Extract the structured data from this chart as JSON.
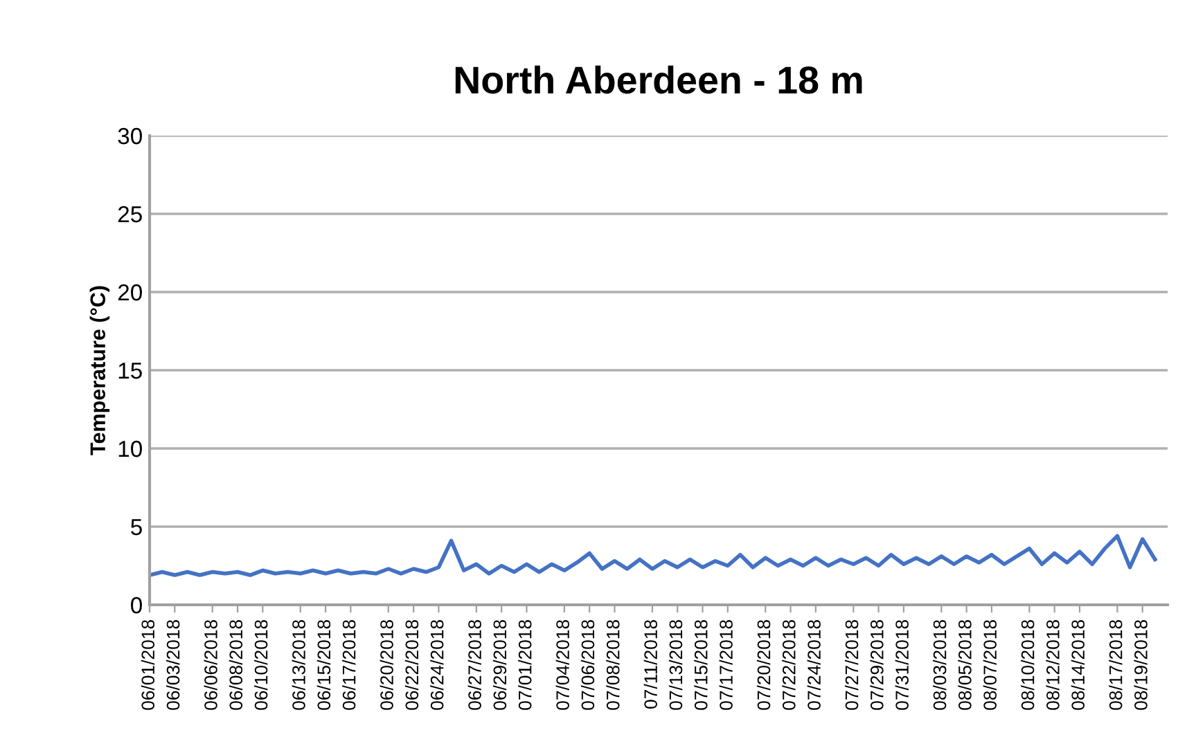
{
  "chart_data": {
    "type": "line",
    "title": "North Aberdeen - 18 m",
    "ylabel": "Temperature (°C)",
    "x": [
      "2018-06-01",
      "2018-06-02",
      "2018-06-03",
      "2018-06-04",
      "2018-06-05",
      "2018-06-06",
      "2018-06-07",
      "2018-06-08",
      "2018-06-09",
      "2018-06-10",
      "2018-06-11",
      "2018-06-12",
      "2018-06-13",
      "2018-06-14",
      "2018-06-15",
      "2018-06-16",
      "2018-06-17",
      "2018-06-18",
      "2018-06-19",
      "2018-06-20",
      "2018-06-21",
      "2018-06-22",
      "2018-06-23",
      "2018-06-24",
      "2018-06-25",
      "2018-06-26",
      "2018-06-27",
      "2018-06-28",
      "2018-06-29",
      "2018-06-30",
      "2018-07-01",
      "2018-07-02",
      "2018-07-03",
      "2018-07-04",
      "2018-07-05",
      "2018-07-06",
      "2018-07-07",
      "2018-07-08",
      "2018-07-09",
      "2018-07-10",
      "2018-07-11",
      "2018-07-12",
      "2018-07-13",
      "2018-07-14",
      "2018-07-15",
      "2018-07-16",
      "2018-07-17",
      "2018-07-18",
      "2018-07-19",
      "2018-07-20",
      "2018-07-21",
      "2018-07-22",
      "2018-07-23",
      "2018-07-24",
      "2018-07-25",
      "2018-07-26",
      "2018-07-27",
      "2018-07-28",
      "2018-07-29",
      "2018-07-30",
      "2018-07-31",
      "2018-08-01",
      "2018-08-02",
      "2018-08-03",
      "2018-08-04",
      "2018-08-05",
      "2018-08-06",
      "2018-08-07",
      "2018-08-08",
      "2018-08-09",
      "2018-08-10",
      "2018-08-11",
      "2018-08-12",
      "2018-08-13",
      "2018-08-14",
      "2018-08-15",
      "2018-08-16",
      "2018-08-17",
      "2018-08-18",
      "2018-08-19",
      "2018-08-20"
    ],
    "series": [
      {
        "color": "#4472c4",
        "values": [
          1.9,
          2.1,
          1.9,
          2.1,
          1.9,
          2.1,
          2.0,
          2.1,
          1.9,
          2.2,
          2.0,
          2.1,
          2.0,
          2.2,
          2.0,
          2.2,
          2.0,
          2.1,
          2.0,
          2.3,
          2.0,
          2.3,
          2.1,
          2.4,
          4.1,
          2.2,
          2.6,
          2.0,
          2.5,
          2.1,
          2.6,
          2.1,
          2.6,
          2.2,
          2.7,
          3.3,
          2.3,
          2.8,
          2.3,
          2.9,
          2.3,
          2.8,
          2.4,
          2.9,
          2.4,
          2.8,
          2.5,
          3.2,
          2.4,
          3.0,
          2.5,
          2.9,
          2.5,
          3.0,
          2.5,
          2.9,
          2.6,
          3.0,
          2.5,
          3.2,
          2.6,
          3.0,
          2.6,
          3.1,
          2.6,
          3.1,
          2.7,
          3.2,
          2.6,
          3.1,
          3.6,
          2.6,
          3.3,
          2.7,
          3.4,
          2.6,
          3.6,
          4.4,
          2.4,
          4.2,
          2.9
        ]
      }
    ],
    "ylim": [
      0,
      30
    ],
    "yticks": [
      0,
      5,
      10,
      15,
      20,
      25,
      30
    ],
    "xlim": [
      "2018-06-01",
      "2018-08-21"
    ],
    "xticks": [
      {
        "value": "2018-06-01",
        "label": "06/01/2018"
      },
      {
        "value": "2018-06-03",
        "label": "06/03/2018"
      },
      {
        "value": "2018-06-06",
        "label": "06/06/2018"
      },
      {
        "value": "2018-06-08",
        "label": "06/08/2018"
      },
      {
        "value": "2018-06-10",
        "label": "06/10/2018"
      },
      {
        "value": "2018-06-13",
        "label": "06/13/2018"
      },
      {
        "value": "2018-06-15",
        "label": "06/15/2018"
      },
      {
        "value": "2018-06-17",
        "label": "06/17/2018"
      },
      {
        "value": "2018-06-20",
        "label": "06/20/2018"
      },
      {
        "value": "2018-06-22",
        "label": "06/22/2018"
      },
      {
        "value": "2018-06-24",
        "label": "06/24/2018"
      },
      {
        "value": "2018-06-27",
        "label": "06/27/2018"
      },
      {
        "value": "2018-06-29",
        "label": "06/29/2018"
      },
      {
        "value": "2018-07-01",
        "label": "07/01/2018"
      },
      {
        "value": "2018-07-04",
        "label": "07/04/2018"
      },
      {
        "value": "2018-07-06",
        "label": "07/06/2018"
      },
      {
        "value": "2018-07-08",
        "label": "07/08/2018"
      },
      {
        "value": "2018-07-11",
        "label": "07/11/2018"
      },
      {
        "value": "2018-07-13",
        "label": "07/13/2018"
      },
      {
        "value": "2018-07-15",
        "label": "07/15/2018"
      },
      {
        "value": "2018-07-17",
        "label": "07/17/2018"
      },
      {
        "value": "2018-07-20",
        "label": "07/20/2018"
      },
      {
        "value": "2018-07-22",
        "label": "07/22/2018"
      },
      {
        "value": "2018-07-24",
        "label": "07/24/2018"
      },
      {
        "value": "2018-07-27",
        "label": "07/27/2018"
      },
      {
        "value": "2018-07-29",
        "label": "07/29/2018"
      },
      {
        "value": "2018-07-31",
        "label": "07/31/2018"
      },
      {
        "value": "2018-08-03",
        "label": "08/03/2018"
      },
      {
        "value": "2018-08-05",
        "label": "08/05/2018"
      },
      {
        "value": "2018-08-07",
        "label": "08/07/2018"
      },
      {
        "value": "2018-08-10",
        "label": "08/10/2018"
      },
      {
        "value": "2018-08-12",
        "label": "08/12/2018"
      },
      {
        "value": "2018-08-14",
        "label": "08/14/2018"
      },
      {
        "value": "2018-08-17",
        "label": "08/17/2018"
      },
      {
        "value": "2018-08-19",
        "label": "08/19/2018"
      }
    ],
    "grid": "y",
    "marker": "none",
    "line_style": "solid"
  }
}
